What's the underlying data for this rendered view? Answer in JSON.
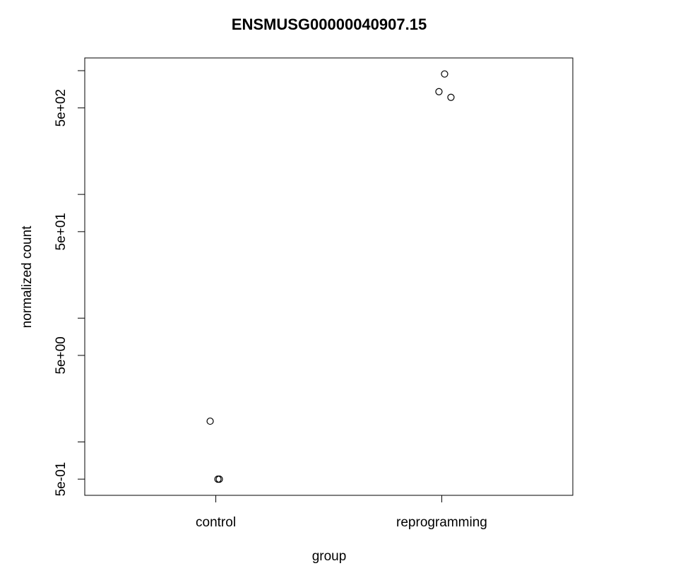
{
  "chart_data": {
    "type": "strip",
    "title": "ENSMUSG00000040907.15",
    "x_label": "group",
    "y_label": "normalized count",
    "groups": [
      {
        "name": "control",
        "values": [
          1.47,
          0.5,
          0.5
        ]
      },
      {
        "name": "reprogramming",
        "values": [
          676,
          940,
          609
        ]
      }
    ],
    "log_y": true,
    "ylim": [
      0.37,
      1267
    ],
    "yticks": [
      {
        "value": 0.5,
        "label": "5e-01"
      },
      {
        "value": 5,
        "label": "5e+00"
      },
      {
        "value": 50,
        "label": "5e+01"
      },
      {
        "value": 500,
        "label": "5e+02"
      }
    ],
    "minor_yticks": [
      1,
      10,
      100,
      1000
    ],
    "color": "#000000"
  }
}
